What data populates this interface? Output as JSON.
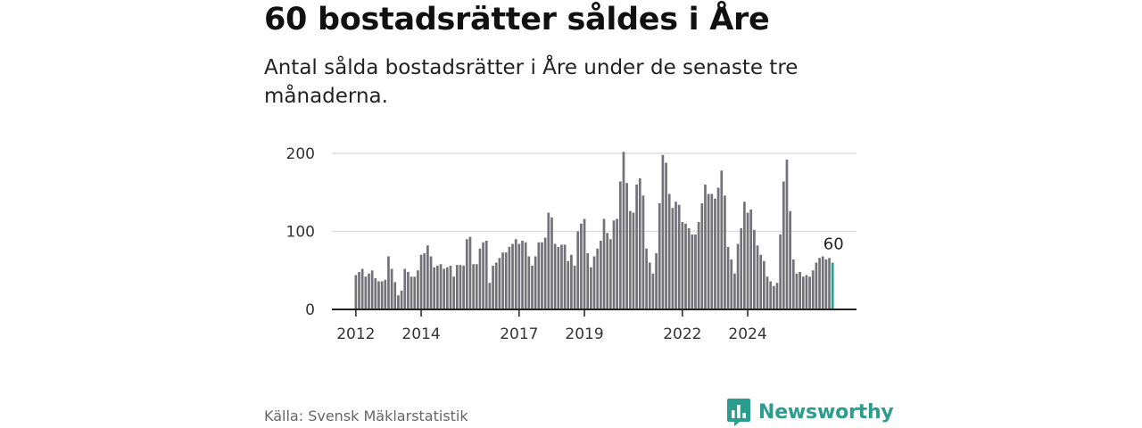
{
  "header": {
    "title": "60 bostadsrätter såldes i Åre",
    "subtitle": "Antal sålda bostadsrätter i Åre under de senaste tre månaderna."
  },
  "footer": {
    "source": "Källa: Svensk Mäklarstatistik",
    "brand": "Newsworthy"
  },
  "colors": {
    "bar": "#737278",
    "highlight": "#2a9d8f",
    "grid": "#dddddd",
    "axis": "#222222",
    "brand": "#2a9d8f"
  },
  "chart_data": {
    "type": "bar",
    "title": "60 bostadsrätter såldes i Åre",
    "subtitle": "Antal sålda bostadsrätter i Åre under de senaste tre månaderna.",
    "xlabel": "",
    "ylabel": "",
    "ylim": [
      0,
      200
    ],
    "yticks": [
      0,
      100,
      200
    ],
    "grid": true,
    "x_tick_labels": [
      "2012",
      "2014",
      "2017",
      "2019",
      "2022",
      "2024"
    ],
    "x_tick_bar_index": [
      0,
      20,
      50,
      70,
      100,
      120
    ],
    "highlight_label": "60",
    "values": [
      44,
      48,
      52,
      42,
      46,
      50,
      40,
      36,
      36,
      38,
      68,
      52,
      35,
      18,
      24,
      52,
      48,
      42,
      42,
      50,
      70,
      72,
      82,
      68,
      54,
      56,
      58,
      52,
      54,
      56,
      42,
      57,
      57,
      56,
      90,
      93,
      58,
      58,
      78,
      86,
      88,
      34,
      56,
      60,
      66,
      73,
      73,
      80,
      84,
      90,
      84,
      88,
      86,
      68,
      56,
      68,
      86,
      86,
      92,
      124,
      118,
      84,
      80,
      83,
      83,
      62,
      70,
      56,
      100,
      110,
      116,
      72,
      54,
      68,
      78,
      88,
      116,
      98,
      90,
      114,
      116,
      164,
      202,
      162,
      126,
      124,
      160,
      168,
      146,
      78,
      60,
      46,
      72,
      136,
      198,
      188,
      148,
      130,
      138,
      134,
      112,
      110,
      104,
      96,
      96,
      112,
      136,
      160,
      148,
      148,
      142,
      156,
      178,
      146,
      80,
      64,
      46,
      84,
      104,
      138,
      124,
      128,
      102,
      82,
      70,
      62,
      42,
      36,
      30,
      34,
      96,
      164,
      192,
      126,
      64,
      46,
      48,
      42,
      44,
      42,
      50,
      60,
      66,
      68,
      64,
      66,
      60
    ]
  }
}
